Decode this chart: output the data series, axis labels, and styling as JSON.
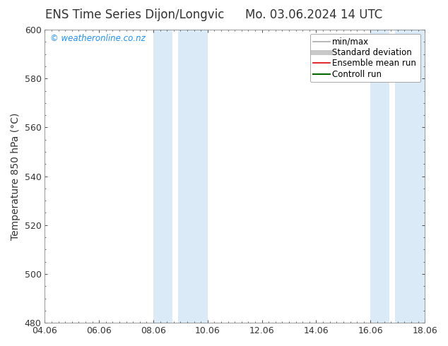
{
  "title_left": "ENS Time Series Dijon/Longvic",
  "title_right": "Mo. 03.06.2024 14 UTC",
  "ylabel": "Temperature 850 hPa (°C)",
  "ylim": [
    480,
    600
  ],
  "yticks": [
    480,
    500,
    520,
    540,
    560,
    580,
    600
  ],
  "xtick_labels": [
    "04.06",
    "06.06",
    "08.06",
    "10.06",
    "12.06",
    "14.06",
    "16.06",
    "18.06"
  ],
  "xtick_values": [
    0,
    2,
    4,
    6,
    8,
    10,
    12,
    14
  ],
  "background_color": "#ffffff",
  "plot_bg_color": "#ffffff",
  "shaded_bands": [
    [
      {
        "x_start": 4.0,
        "x_end": 4.7
      },
      {
        "x_start": 4.9,
        "x_end": 6.0
      }
    ],
    [
      {
        "x_start": 12.0,
        "x_end": 12.7
      },
      {
        "x_start": 12.9,
        "x_end": 14.0
      }
    ]
  ],
  "shade_color": "#daeaf7",
  "watermark_text": "© weatheronline.co.nz",
  "watermark_color": "#1e90ff",
  "legend_items": [
    {
      "label": "min/max",
      "color": "#aaaaaa",
      "lw": 1.2
    },
    {
      "label": "Standard deviation",
      "color": "#c8c8c8",
      "lw": 5
    },
    {
      "label": "Ensemble mean run",
      "color": "#dd0000",
      "lw": 1.2
    },
    {
      "label": "Controll run",
      "color": "#006600",
      "lw": 1.5
    }
  ],
  "border_color": "#888888",
  "tick_color": "#333333",
  "font_color": "#333333",
  "title_fontsize": 12,
  "axis_label_fontsize": 10,
  "tick_fontsize": 9,
  "legend_fontsize": 8.5
}
